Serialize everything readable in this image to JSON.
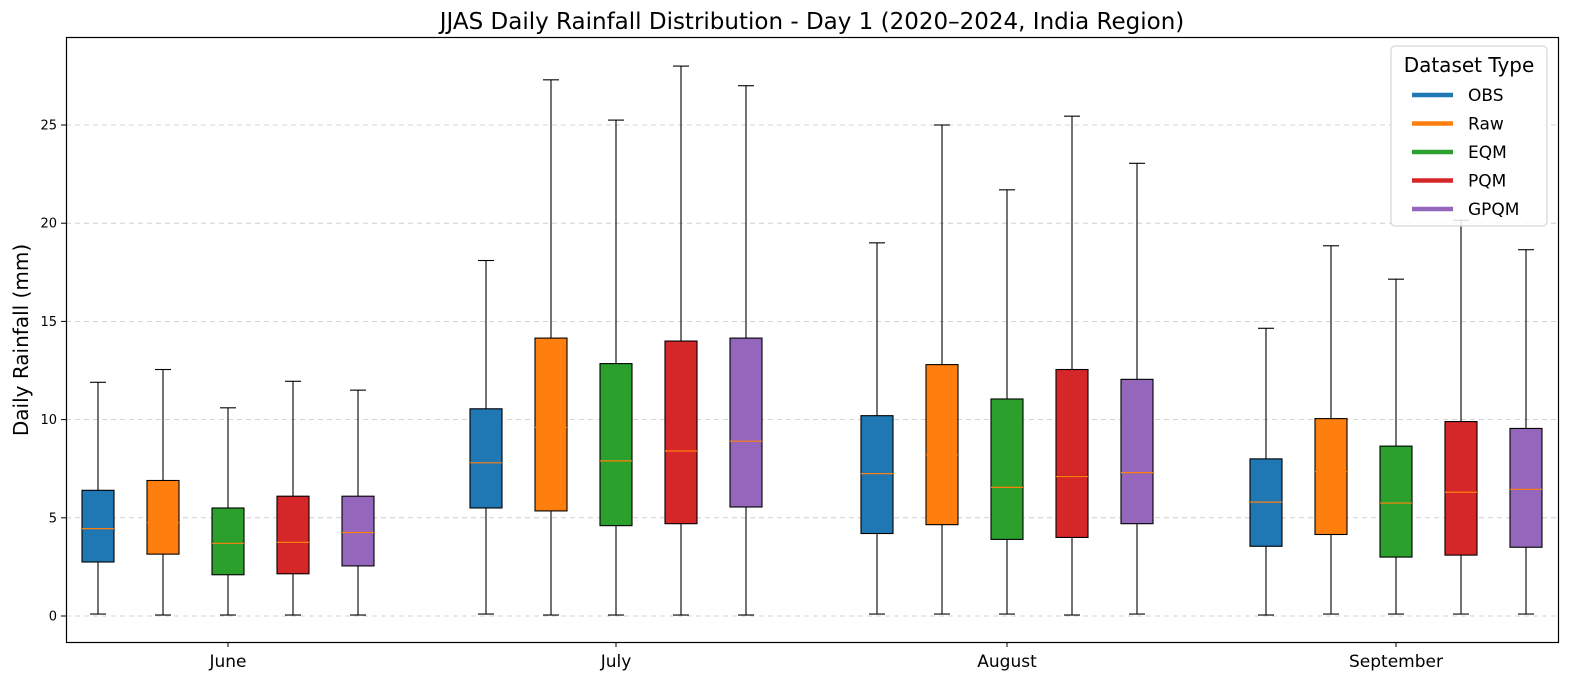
{
  "chart_data": {
    "type": "box",
    "title": "JJAS Daily Rainfall Distribution - Day 1 (2020–2024, India Region)",
    "xlabel": "",
    "ylabel": "Daily Rainfall (mm)",
    "ylim": [
      -1.3,
      29.5
    ],
    "yticks": [
      0,
      5,
      10,
      15,
      20,
      25
    ],
    "grid": "y dashed",
    "legend": {
      "title": "Dataset Type",
      "position": "top-right"
    },
    "categories": [
      "June",
      "July",
      "August",
      "September"
    ],
    "series": [
      {
        "name": "OBS",
        "color": "#1f77b4",
        "boxes": [
          {
            "min": 0.1,
            "q1": 2.75,
            "median": 4.45,
            "q3": 6.4,
            "max": 11.9
          },
          {
            "min": 0.1,
            "q1": 5.5,
            "median": 7.8,
            "q3": 10.55,
            "max": 18.1
          },
          {
            "min": 0.1,
            "q1": 4.2,
            "median": 7.25,
            "q3": 10.2,
            "max": 19.0
          },
          {
            "min": 0.05,
            "q1": 3.55,
            "median": 5.8,
            "q3": 8.0,
            "max": 14.65
          }
        ]
      },
      {
        "name": "Raw",
        "color": "#ff7f0e",
        "boxes": [
          {
            "min": 0.05,
            "q1": 3.15,
            "median": 4.75,
            "q3": 6.9,
            "max": 12.55
          },
          {
            "min": 0.05,
            "q1": 5.35,
            "median": 9.6,
            "q3": 14.15,
            "max": 27.3
          },
          {
            "min": 0.1,
            "q1": 4.65,
            "median": 8.2,
            "q3": 12.8,
            "max": 25.0
          },
          {
            "min": 0.1,
            "q1": 4.15,
            "median": 7.35,
            "q3": 10.05,
            "max": 18.85
          }
        ]
      },
      {
        "name": "EQM",
        "color": "#2ca02c",
        "boxes": [
          {
            "min": 0.05,
            "q1": 2.1,
            "median": 3.7,
            "q3": 5.5,
            "max": 10.6
          },
          {
            "min": 0.05,
            "q1": 4.6,
            "median": 7.9,
            "q3": 12.85,
            "max": 25.25
          },
          {
            "min": 0.1,
            "q1": 3.9,
            "median": 6.55,
            "q3": 11.05,
            "max": 21.7
          },
          {
            "min": 0.1,
            "q1": 3.0,
            "median": 5.75,
            "q3": 8.65,
            "max": 17.15
          }
        ]
      },
      {
        "name": "PQM",
        "color": "#d62728",
        "boxes": [
          {
            "min": 0.05,
            "q1": 2.15,
            "median": 3.75,
            "q3": 6.1,
            "max": 11.95
          },
          {
            "min": 0.05,
            "q1": 4.7,
            "median": 8.4,
            "q3": 14.0,
            "max": 28.0
          },
          {
            "min": 0.05,
            "q1": 4.0,
            "median": 7.1,
            "q3": 12.55,
            "max": 25.45
          },
          {
            "min": 0.1,
            "q1": 3.1,
            "median": 6.3,
            "q3": 9.9,
            "max": 20.15
          }
        ]
      },
      {
        "name": "GPQM",
        "color": "#9467bd",
        "boxes": [
          {
            "min": 0.05,
            "q1": 2.55,
            "median": 4.25,
            "q3": 6.1,
            "max": 11.5
          },
          {
            "min": 0.05,
            "q1": 5.55,
            "median": 8.9,
            "q3": 14.15,
            "max": 27.0
          },
          {
            "min": 0.1,
            "q1": 4.7,
            "median": 7.3,
            "q3": 12.05,
            "max": 23.05
          },
          {
            "min": 0.1,
            "q1": 3.5,
            "median": 6.45,
            "q3": 9.55,
            "max": 18.65
          }
        ]
      }
    ]
  }
}
